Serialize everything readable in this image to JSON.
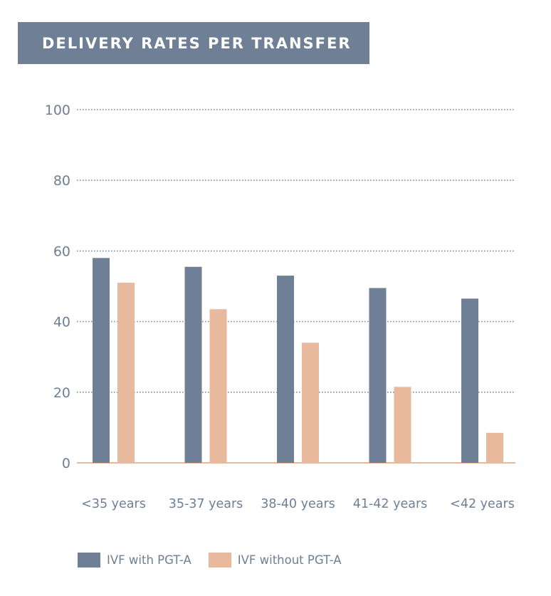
{
  "chart_data": {
    "type": "bar",
    "title": "DELIVERY RATES PER TRANSFER",
    "categories": [
      "<35 years",
      "35-37 years",
      "38-40 years",
      "41-42 years",
      "<42 years"
    ],
    "series": [
      {
        "name": "IVF with PGT-A",
        "color": "#6e7f96",
        "values": [
          58,
          55.5,
          53,
          49.5,
          46.5
        ]
      },
      {
        "name": "IVF without PGT-A",
        "color": "#e9b99e",
        "values": [
          51,
          43.5,
          34,
          21.5,
          8.5
        ]
      }
    ],
    "yticks": [
      0,
      20,
      40,
      60,
      80,
      100
    ],
    "ylim": [
      0,
      100
    ],
    "grid": true,
    "legend_position": "bottom-left",
    "xlabel": "",
    "ylabel": ""
  }
}
